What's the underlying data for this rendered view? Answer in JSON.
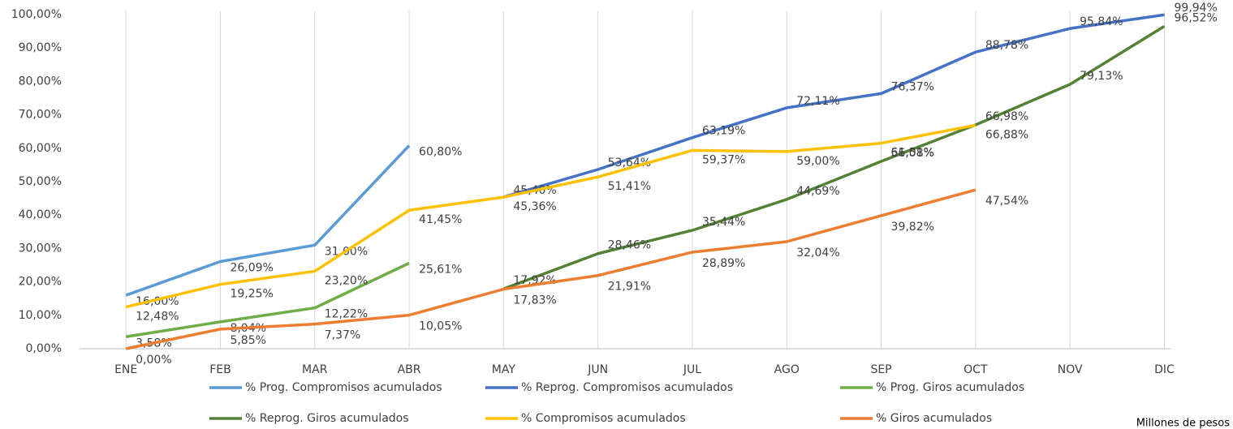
{
  "chart_data": {
    "type": "line",
    "categories": [
      "ENE",
      "FEB",
      "MAR",
      "ABR",
      "MAY",
      "JUN",
      "JUL",
      "AGO",
      "SEP",
      "OCT",
      "NOV",
      "DIC"
    ],
    "ylim": [
      0,
      100
    ],
    "yticks": [
      {
        "value": 0,
        "label": "0,00%"
      },
      {
        "value": 10,
        "label": "10,00%"
      },
      {
        "value": 20,
        "label": "20,00%"
      },
      {
        "value": 30,
        "label": "30,00%"
      },
      {
        "value": 40,
        "label": "40,00%"
      },
      {
        "value": 50,
        "label": "50,00%"
      },
      {
        "value": 60,
        "label": "60,00%"
      },
      {
        "value": 70,
        "label": "70,00%"
      },
      {
        "value": 80,
        "label": "80,00%"
      },
      {
        "value": 90,
        "label": "90,00%"
      },
      {
        "value": 100,
        "label": "100,00%"
      }
    ],
    "grid": true,
    "note": "Millones de pesos",
    "series": [
      {
        "name": "% Prog. Compromisos acumulados",
        "color": "#5b9bd5",
        "values": [
          16.0,
          26.09,
          31.0,
          60.8,
          null,
          null,
          null,
          null,
          null,
          null,
          null,
          null
        ],
        "value_labels": [
          "16,00%",
          "26,09%",
          "31,00%",
          "60,80%",
          null,
          null,
          null,
          null,
          null,
          null,
          null,
          null
        ]
      },
      {
        "name": "% Reprog. Compromisos acumulados",
        "color": "#4472c4",
        "values": [
          null,
          null,
          null,
          null,
          45.4,
          53.64,
          63.19,
          72.11,
          76.37,
          88.78,
          95.84,
          99.94
        ],
        "value_labels": [
          null,
          null,
          null,
          null,
          "45,40%",
          "53,64%",
          "63,19%",
          "72,11%",
          "76,37%",
          "88,78%",
          "95,84%",
          "99,94%"
        ]
      },
      {
        "name": "% Prog. Giros acumulados",
        "color": "#70ad47",
        "values": [
          3.58,
          8.04,
          12.22,
          25.61,
          null,
          null,
          null,
          null,
          null,
          null,
          null,
          null
        ],
        "value_labels": [
          "3,58%",
          "8,04%",
          "12,22%",
          "25,61%",
          null,
          null,
          null,
          null,
          null,
          null,
          null,
          null
        ]
      },
      {
        "name": "% Reprog. Giros acumulados",
        "color": "#548235",
        "values": [
          null,
          null,
          null,
          null,
          17.92,
          28.46,
          35.44,
          44.69,
          56.08,
          66.98,
          79.13,
          96.52
        ],
        "value_labels": [
          null,
          null,
          null,
          null,
          "17,92%",
          "28,46%",
          "35,44%",
          "44,69%",
          "56,08%",
          "66,98%",
          "79,13%",
          "96,52%"
        ]
      },
      {
        "name": "% Compromisos acumulados",
        "color": "#ffc000",
        "values": [
          12.48,
          19.25,
          23.2,
          41.45,
          45.36,
          51.41,
          59.37,
          59.0,
          61.51,
          66.88,
          null,
          null
        ],
        "value_labels": [
          "12,48%",
          "19,25%",
          "23,20%",
          "41,45%",
          "45,36%",
          "51,41%",
          "59,37%",
          "59,00%",
          "61,51%",
          "66,88%",
          null,
          null
        ]
      },
      {
        "name": "% Giros acumulados",
        "color": "#ed7d31",
        "values": [
          0.0,
          5.85,
          7.37,
          10.05,
          17.83,
          21.91,
          28.89,
          32.04,
          39.82,
          47.54,
          null,
          null
        ],
        "value_labels": [
          "0,00%",
          "5,85%",
          "7,37%",
          "10,05%",
          "17,83%",
          "21,91%",
          "28,89%",
          "32,04%",
          "39,82%",
          "47,54%",
          null,
          null
        ]
      }
    ]
  }
}
